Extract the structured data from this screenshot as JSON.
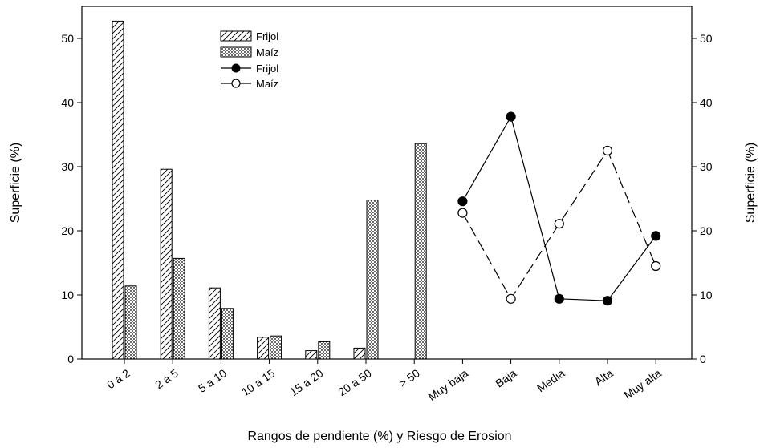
{
  "chart_data": {
    "type": "bar",
    "xlabel": "Rangos de pendiente (%) y Riesgo de Erosion",
    "ylabel_left": "Superficie (%)",
    "ylabel_right": "Superficie (%)",
    "ylim": [
      0,
      55
    ],
    "yticks": [
      0,
      10,
      20,
      30,
      40,
      50
    ],
    "legend_position": "top-center",
    "categories": [
      "0 a 2",
      "2 a 5",
      "5 a 10",
      "10 a 15",
      "15 a 20",
      "20 a 50",
      "> 50",
      "Muy baja",
      "Baja",
      "Media",
      "Alta",
      "Muy alta"
    ],
    "bar_series": [
      {
        "name": "Frijol",
        "pattern": "hatch",
        "values": [
          52.7,
          29.6,
          11.1,
          3.4,
          1.3,
          1.7,
          null,
          null,
          null,
          null,
          null,
          null
        ]
      },
      {
        "name": "Maíz",
        "pattern": "dots",
        "values": [
          11.4,
          15.7,
          7.9,
          3.6,
          2.7,
          24.8,
          33.6,
          null,
          null,
          null,
          null,
          null
        ]
      }
    ],
    "line_series": [
      {
        "name": "Frijol",
        "marker": "filled-circle",
        "line_style": "solid",
        "values": [
          null,
          null,
          null,
          null,
          null,
          null,
          null,
          24.6,
          37.8,
          9.4,
          9.1,
          19.2
        ]
      },
      {
        "name": "Maíz",
        "marker": "open-circle",
        "line_style": "dashed",
        "values": [
          null,
          null,
          null,
          null,
          null,
          null,
          null,
          22.8,
          9.4,
          21.1,
          32.5,
          14.5
        ]
      }
    ]
  }
}
